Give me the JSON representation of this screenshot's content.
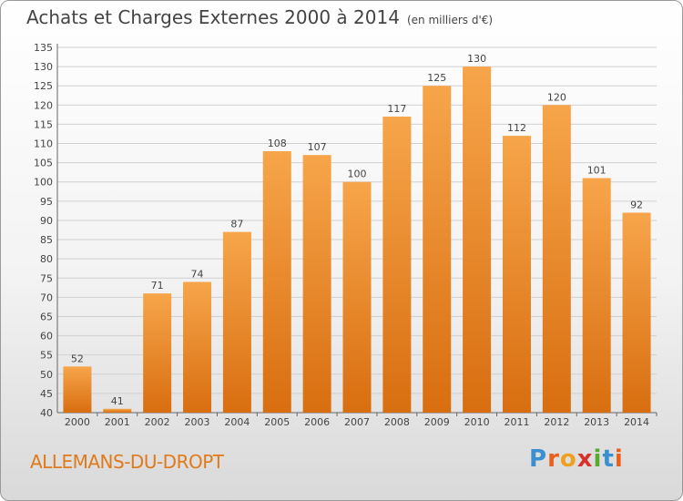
{
  "chart_data": {
    "type": "bar",
    "title": "Achats et Charges Externes 2000 à 2014",
    "subtitle": "(en milliers d'€)",
    "categories": [
      "2000",
      "2001",
      "2002",
      "2003",
      "2004",
      "2005",
      "2006",
      "2007",
      "2008",
      "2009",
      "2010",
      "2011",
      "2012",
      "2013",
      "2014"
    ],
    "values": [
      52,
      41,
      71,
      74,
      87,
      108,
      107,
      100,
      117,
      125,
      130,
      112,
      120,
      101,
      92
    ],
    "ylim": [
      40,
      135
    ],
    "ytick_step": 5,
    "grid": true,
    "xlabel": "",
    "ylabel": "",
    "bar_color": "#f0902a"
  },
  "footer": {
    "town": "ALLEMANS-DU-DROPT",
    "logo_letters": [
      "P",
      "r",
      "o",
      "x",
      "i",
      "t",
      "i"
    ],
    "logo_colors": [
      "#3a8fd0",
      "#e8601c",
      "#f0a020",
      "#d8302a",
      "#5aaa30",
      "#3a8fd0",
      "#e8601c"
    ]
  }
}
